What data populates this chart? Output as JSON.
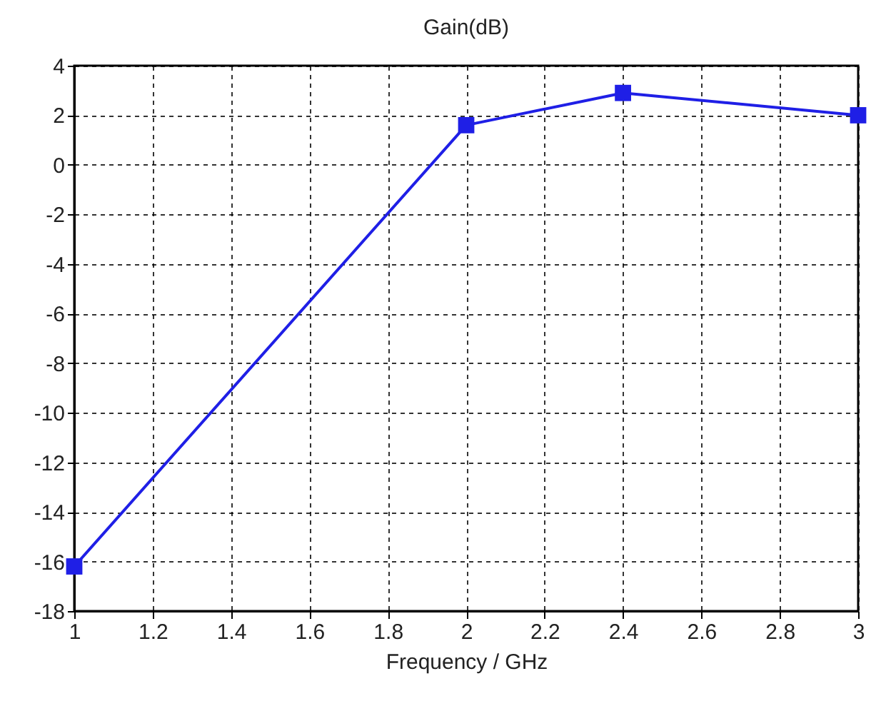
{
  "chart_data": {
    "type": "line",
    "title": "Gain(dB)",
    "xlabel": "Frequency / GHz",
    "x": [
      1,
      2,
      2.4,
      3
    ],
    "series": [
      {
        "color": "#1f1fe6",
        "values": [
          -16.2,
          1.6,
          2.9,
          2.0
        ]
      }
    ],
    "xlim": [
      1,
      3
    ],
    "xticks": [
      1,
      1.2,
      1.4,
      1.6,
      1.8,
      2,
      2.2,
      2.4,
      2.6,
      2.8,
      3
    ],
    "ylim": [
      -18,
      4
    ],
    "yticks": [
      -18,
      -16,
      -14,
      -12,
      -10,
      -8,
      -6,
      -4,
      -2,
      0,
      2,
      4
    ],
    "grid": true,
    "marker": "square",
    "line_style": "solid"
  }
}
